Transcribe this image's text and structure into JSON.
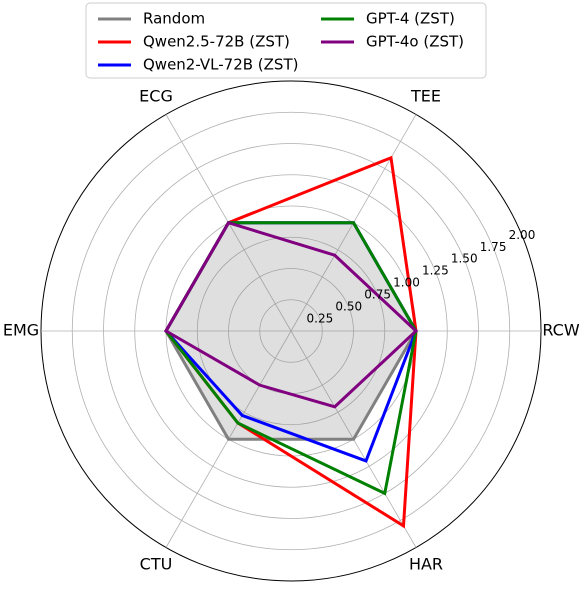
{
  "chart_data": {
    "type": "radar",
    "axes": [
      "RCW",
      "TEE",
      "ECG",
      "EMG",
      "CTU",
      "HAR"
    ],
    "rlim": [
      0,
      2.0
    ],
    "rticks": [
      0.25,
      0.5,
      0.75,
      1.0,
      1.25,
      1.5,
      1.75,
      2.0
    ],
    "rtick_labels": [
      "0.25",
      "0.50",
      "0.75",
      "1.00",
      "1.25",
      "1.50",
      "1.75",
      "2.00"
    ],
    "grid": true,
    "legend_position": "top-center",
    "series": [
      {
        "name": "Random",
        "color": "#808080",
        "fill": true,
        "values": [
          1.0,
          1.0,
          1.0,
          1.0,
          1.0,
          1.0
        ]
      },
      {
        "name": "Qwen2.5-72B (ZST)",
        "color": "#ff0000",
        "values": [
          1.0,
          1.6,
          1.0,
          1.0,
          0.85,
          1.8
        ]
      },
      {
        "name": "Qwen2-VL-72B (ZST)",
        "color": "#0000ff",
        "values": [
          1.0,
          1.0,
          1.0,
          1.0,
          0.78,
          1.2
        ]
      },
      {
        "name": "GPT-4 (ZST)",
        "color": "#008000",
        "values": [
          1.0,
          1.0,
          1.0,
          1.0,
          0.85,
          1.5
        ]
      },
      {
        "name": "GPT-4o (ZST)",
        "color": "#800080",
        "values": [
          1.0,
          0.7,
          1.0,
          1.0,
          0.5,
          0.7
        ]
      }
    ]
  }
}
